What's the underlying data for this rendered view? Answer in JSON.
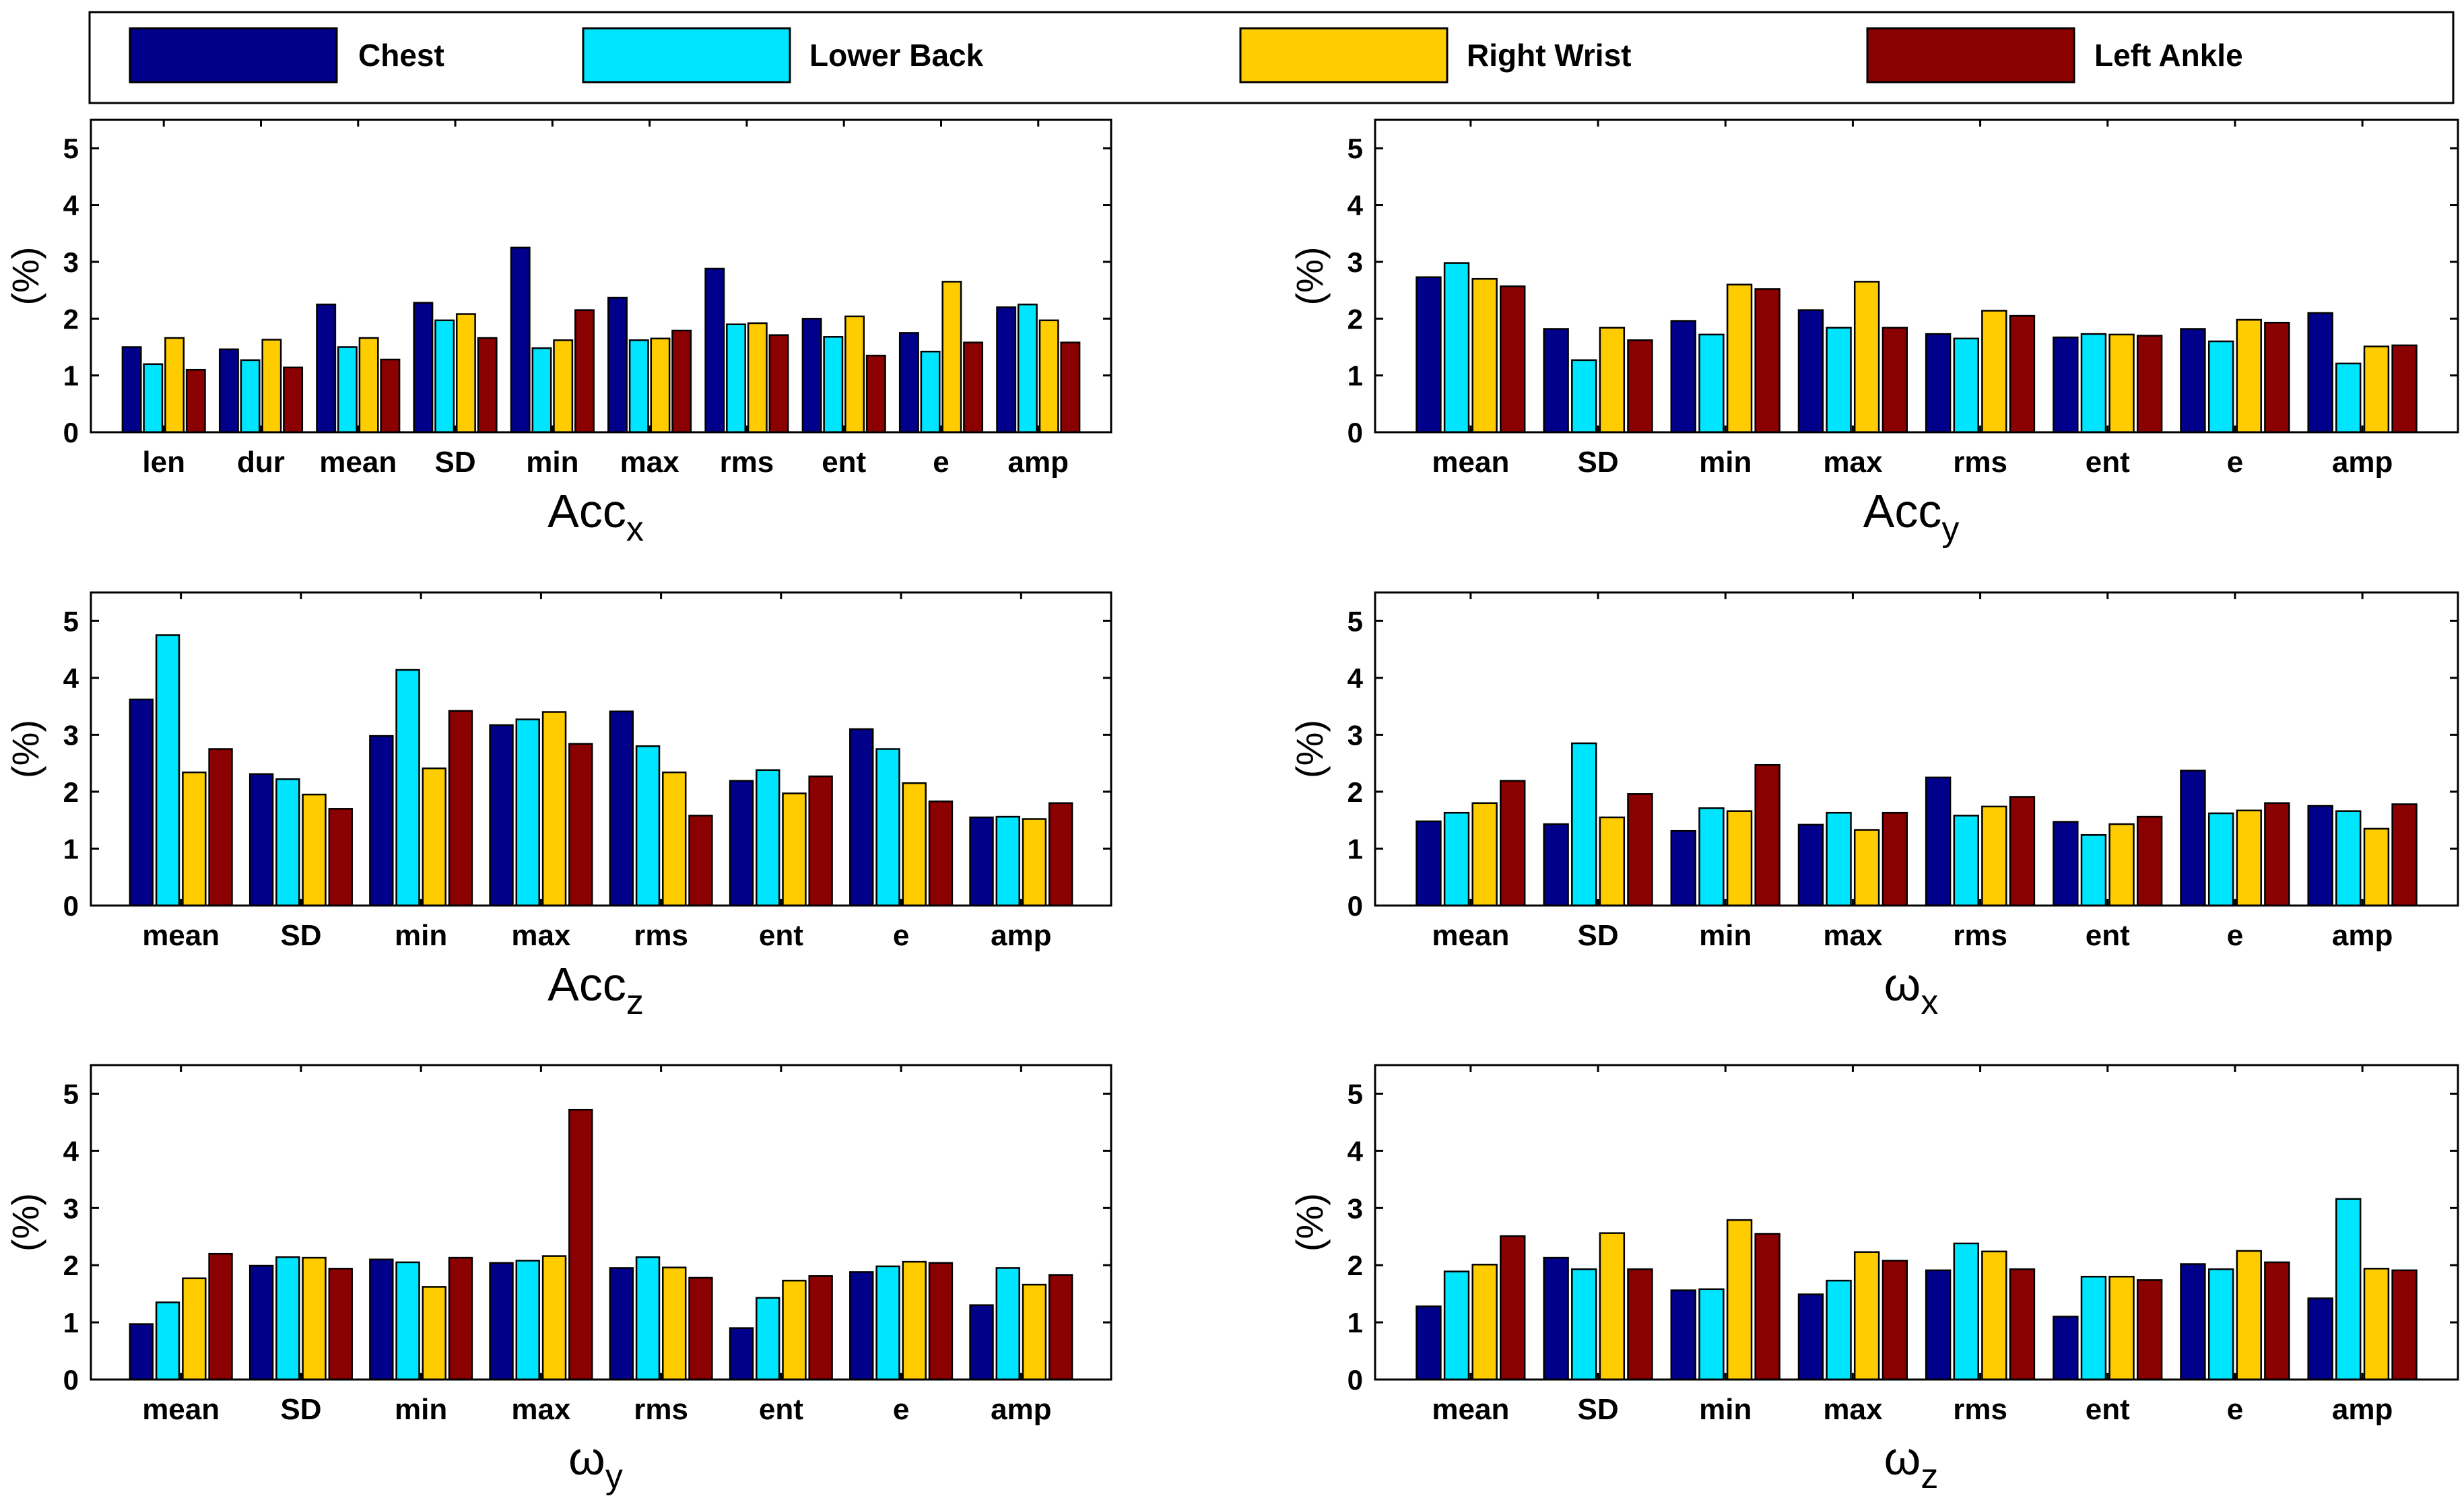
{
  "legend": [
    {
      "label": "Chest",
      "color": "#00008B"
    },
    {
      "label": "Lower Back",
      "color": "#00E5FF"
    },
    {
      "label": "Right Wrist",
      "color": "#FFCC00"
    },
    {
      "label": "Left Ankle",
      "color": "#8B0000"
    }
  ],
  "chart_data": [
    {
      "type": "bar",
      "title_base": "Acc",
      "title_sub": "x",
      "ylabel": "(%)",
      "ylim": [
        0,
        5.5
      ],
      "yticks": [
        "0",
        "1",
        "2",
        "3",
        "4",
        "5"
      ],
      "categories": [
        "len",
        "dur",
        "mean",
        "SD",
        "min",
        "max",
        "rms",
        "ent",
        "e",
        "amp"
      ],
      "series": [
        {
          "name": "Chest",
          "values": [
            1.5,
            1.46,
            2.25,
            2.28,
            3.25,
            2.37,
            2.88,
            2.0,
            1.75,
            2.2
          ]
        },
        {
          "name": "Lower Back",
          "values": [
            1.2,
            1.27,
            1.5,
            1.97,
            1.48,
            1.62,
            1.9,
            1.68,
            1.42,
            2.25
          ]
        },
        {
          "name": "Right Wrist",
          "values": [
            1.66,
            1.63,
            1.66,
            2.08,
            1.62,
            1.65,
            1.92,
            2.04,
            2.65,
            1.97
          ]
        },
        {
          "name": "Left Ankle",
          "values": [
            1.1,
            1.14,
            1.28,
            1.66,
            2.15,
            1.79,
            1.71,
            1.35,
            1.58,
            1.58
          ]
        }
      ]
    },
    {
      "type": "bar",
      "title_base": "Acc",
      "title_sub": "y",
      "ylabel": "(%)",
      "ylim": [
        0,
        5.5
      ],
      "yticks": [
        "0",
        "1",
        "2",
        "3",
        "4",
        "5"
      ],
      "categories": [
        "mean",
        "SD",
        "min",
        "max",
        "rms",
        "ent",
        "e",
        "amp"
      ],
      "series": [
        {
          "name": "Chest",
          "values": [
            2.73,
            1.82,
            1.96,
            2.15,
            1.73,
            1.67,
            1.82,
            2.1
          ]
        },
        {
          "name": "Lower Back",
          "values": [
            2.98,
            1.27,
            1.72,
            1.84,
            1.65,
            1.73,
            1.6,
            1.21
          ]
        },
        {
          "name": "Right Wrist",
          "values": [
            2.7,
            1.84,
            2.6,
            2.65,
            2.14,
            1.72,
            1.98,
            1.51
          ]
        },
        {
          "name": "Left Ankle",
          "values": [
            2.57,
            1.62,
            2.52,
            1.84,
            2.05,
            1.7,
            1.93,
            1.53
          ]
        }
      ]
    },
    {
      "type": "bar",
      "title_base": "Acc",
      "title_sub": "z",
      "ylabel": "(%)",
      "ylim": [
        0,
        5.5
      ],
      "yticks": [
        "0",
        "1",
        "2",
        "3",
        "4",
        "5"
      ],
      "categories": [
        "mean",
        "SD",
        "min",
        "max",
        "rms",
        "ent",
        "e",
        "amp"
      ],
      "series": [
        {
          "name": "Chest",
          "values": [
            3.62,
            2.31,
            2.98,
            3.17,
            3.41,
            2.19,
            3.1,
            1.55
          ]
        },
        {
          "name": "Lower Back",
          "values": [
            4.75,
            2.22,
            4.14,
            3.27,
            2.8,
            2.38,
            2.75,
            1.56
          ]
        },
        {
          "name": "Right Wrist",
          "values": [
            2.34,
            1.95,
            2.41,
            3.4,
            2.34,
            1.97,
            2.15,
            1.52
          ]
        },
        {
          "name": "Left Ankle",
          "values": [
            2.75,
            1.7,
            3.42,
            2.84,
            1.58,
            2.27,
            1.83,
            1.8
          ]
        }
      ]
    },
    {
      "type": "bar",
      "title_base": "ω",
      "title_sub": "x",
      "ylabel": "(%)",
      "ylim": [
        0,
        5.5
      ],
      "yticks": [
        "0",
        "1",
        "2",
        "3",
        "4",
        "5"
      ],
      "categories": [
        "mean",
        "SD",
        "min",
        "max",
        "rms",
        "ent",
        "e",
        "amp"
      ],
      "series": [
        {
          "name": "Chest",
          "values": [
            1.48,
            1.43,
            1.31,
            1.42,
            2.25,
            1.47,
            2.37,
            1.75
          ]
        },
        {
          "name": "Lower Back",
          "values": [
            1.63,
            2.85,
            1.71,
            1.63,
            1.58,
            1.24,
            1.62,
            1.66
          ]
        },
        {
          "name": "Right Wrist",
          "values": [
            1.8,
            1.55,
            1.66,
            1.33,
            1.74,
            1.43,
            1.67,
            1.35
          ]
        },
        {
          "name": "Left Ankle",
          "values": [
            2.19,
            1.96,
            2.47,
            1.63,
            1.91,
            1.56,
            1.8,
            1.78
          ]
        }
      ]
    },
    {
      "type": "bar",
      "title_base": "ω",
      "title_sub": "y",
      "ylabel": "(%)",
      "ylim": [
        0,
        5.5
      ],
      "yticks": [
        "0",
        "1",
        "2",
        "3",
        "4",
        "5"
      ],
      "categories": [
        "mean",
        "SD",
        "min",
        "max",
        "rms",
        "ent",
        "e",
        "amp"
      ],
      "series": [
        {
          "name": "Chest",
          "values": [
            0.97,
            1.99,
            2.1,
            2.04,
            1.95,
            0.9,
            1.88,
            1.3
          ]
        },
        {
          "name": "Lower Back",
          "values": [
            1.35,
            2.14,
            2.05,
            2.08,
            2.14,
            1.43,
            1.98,
            1.95
          ]
        },
        {
          "name": "Right Wrist",
          "values": [
            1.77,
            2.13,
            1.62,
            2.16,
            1.96,
            1.73,
            2.06,
            1.66
          ]
        },
        {
          "name": "Left Ankle",
          "values": [
            2.2,
            1.94,
            2.13,
            4.72,
            1.78,
            1.81,
            2.04,
            1.83
          ]
        }
      ]
    },
    {
      "type": "bar",
      "title_base": "ω",
      "title_sub": "z",
      "ylabel": "(%)",
      "ylim": [
        0,
        5.5
      ],
      "yticks": [
        "0",
        "1",
        "2",
        "3",
        "4",
        "5"
      ],
      "categories": [
        "mean",
        "SD",
        "min",
        "max",
        "rms",
        "ent",
        "e",
        "amp"
      ],
      "series": [
        {
          "name": "Chest",
          "values": [
            1.28,
            2.13,
            1.56,
            1.49,
            1.91,
            1.1,
            2.02,
            1.42
          ]
        },
        {
          "name": "Lower Back",
          "values": [
            1.89,
            1.93,
            1.58,
            1.73,
            2.38,
            1.8,
            1.93,
            3.16
          ]
        },
        {
          "name": "Right Wrist",
          "values": [
            2.01,
            2.56,
            2.79,
            2.23,
            2.24,
            1.8,
            2.25,
            1.94
          ]
        },
        {
          "name": "Left Ankle",
          "values": [
            2.51,
            1.93,
            2.55,
            2.08,
            1.93,
            1.74,
            2.05,
            1.91
          ]
        }
      ]
    }
  ]
}
